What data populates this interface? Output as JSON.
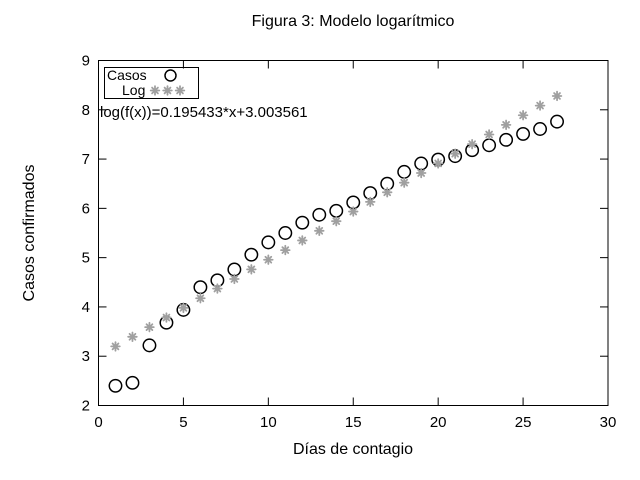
{
  "title": "Figura 3: Modelo logarítmico",
  "annotation": "log(f(x))=0.195433*x+3.003561",
  "axes": {
    "x": {
      "label": "Días de contagio",
      "min": 0,
      "max": 30,
      "ticks": [
        0,
        5,
        10,
        15,
        20,
        25,
        30
      ]
    },
    "y": {
      "label": "Casos confirmados",
      "min": 2,
      "max": 9,
      "ticks": [
        2,
        3,
        4,
        5,
        6,
        7,
        8,
        9
      ]
    }
  },
  "legend": {
    "position": "top-left",
    "entries": [
      {
        "label": "Casos",
        "marker": "open-circle"
      },
      {
        "label": "Log",
        "marker": "gray-asterisk"
      }
    ]
  },
  "colors": {
    "casos_marker": "#000000",
    "log_marker": "#a0a0a0",
    "axis": "#000000",
    "background": "#ffffff"
  },
  "chart_data": {
    "type": "scatter",
    "title": "Figura 3: Modelo logarítmico",
    "xlabel": "Días de contagio",
    "ylabel": "Casos confirmados",
    "xlim": [
      0,
      30
    ],
    "ylim": [
      2,
      9
    ],
    "grid": false,
    "legend_position": "top-left",
    "x": [
      1,
      2,
      3,
      4,
      5,
      6,
      7,
      8,
      9,
      10,
      11,
      12,
      13,
      14,
      15,
      16,
      17,
      18,
      19,
      20,
      21,
      22,
      23,
      24,
      25,
      26,
      27
    ],
    "series": [
      {
        "name": "Casos",
        "marker": "open-circle",
        "color": "#000000",
        "values": [
          2.4,
          2.46,
          3.22,
          3.68,
          3.94,
          4.4,
          4.54,
          4.76,
          5.06,
          5.31,
          5.5,
          5.71,
          5.87,
          5.95,
          6.12,
          6.31,
          6.5,
          6.74,
          6.91,
          6.99,
          7.06,
          7.18,
          7.28,
          7.39,
          7.51,
          7.61,
          7.76
        ]
      },
      {
        "name": "Log",
        "marker": "asterisk",
        "color": "#a0a0a0",
        "values": [
          3.199,
          3.394,
          3.59,
          3.785,
          3.981,
          4.176,
          4.372,
          4.567,
          4.762,
          4.958,
          5.153,
          5.349,
          5.544,
          5.74,
          5.935,
          6.131,
          6.326,
          6.521,
          6.717,
          6.912,
          7.108,
          7.303,
          7.499,
          7.694,
          7.889,
          8.085,
          8.28
        ]
      }
    ],
    "fit": {
      "equation": "log(f(x))=0.195433*x+3.003561",
      "slope": 0.195433,
      "intercept": 3.003561
    }
  }
}
